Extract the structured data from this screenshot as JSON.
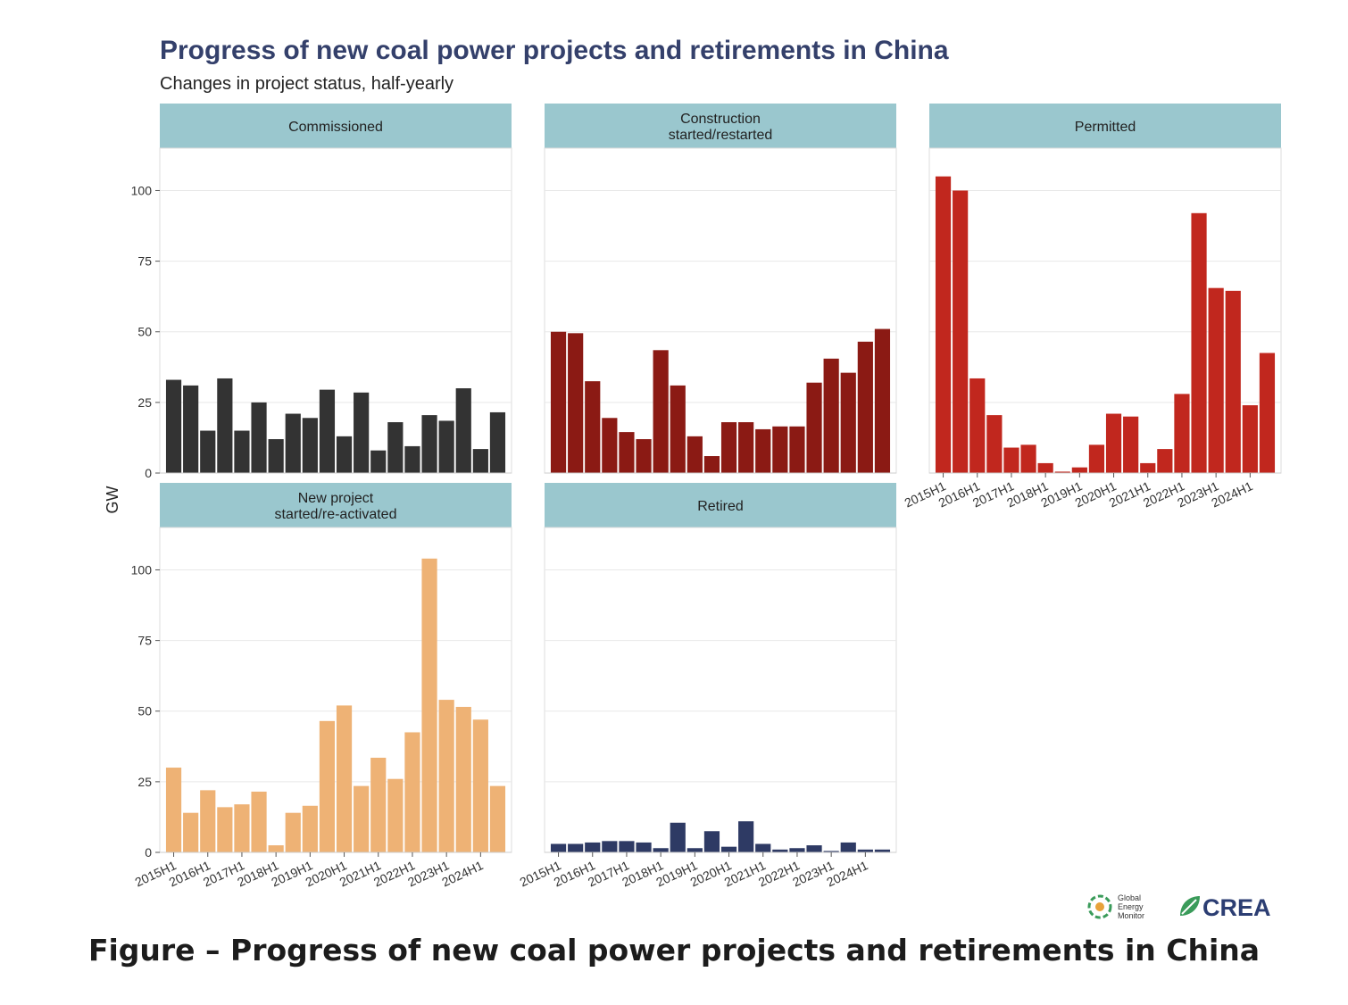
{
  "title": "Progress of new coal power projects and retirements in China",
  "subtitle": "Changes in project status, half-yearly",
  "caption": "Figure – Progress of new coal power projects and retirements in China",
  "logos": {
    "gem_lines": [
      "Global",
      "Energy",
      "Monitor"
    ],
    "crea": "CREA"
  },
  "chart_data": {
    "type": "bar",
    "title": "Progress of new coal power projects and retirements in China",
    "subtitle": "Changes in project status, half-yearly",
    "ylabel": "GW",
    "ylim": [
      0,
      115
    ],
    "yticks": [
      0,
      25,
      50,
      75,
      100
    ],
    "grid": true,
    "categories": [
      "2015H1",
      "2015H2",
      "2016H1",
      "2016H2",
      "2017H1",
      "2017H2",
      "2018H1",
      "2018H2",
      "2019H1",
      "2019H2",
      "2020H1",
      "2020H2",
      "2021H1",
      "2021H2",
      "2022H1",
      "2022H2",
      "2023H1",
      "2023H2",
      "2024H1",
      "2024H2"
    ],
    "tick_labels": [
      "2015H1",
      "2016H1",
      "2017H1",
      "2018H1",
      "2019H1",
      "2020H1",
      "2021H1",
      "2022H1",
      "2023H1",
      "2024H1"
    ],
    "panels": [
      {
        "name": "Commissioned",
        "label_lines": [
          "Commissioned"
        ],
        "color": "#333333",
        "values": [
          33,
          31,
          15,
          33.5,
          15,
          25,
          12,
          21,
          19.5,
          29.5,
          13,
          28.5,
          8,
          18,
          9.5,
          20.5,
          18.5,
          30,
          8.5,
          21.5
        ]
      },
      {
        "name": "Construction started/restarted",
        "label_lines": [
          "Construction",
          "started/restarted"
        ],
        "color": "#8b1a14",
        "values": [
          50,
          49.5,
          32.5,
          19.5,
          14.5,
          12,
          43.5,
          31,
          13,
          6,
          18,
          18,
          15.5,
          16.5,
          16.5,
          32,
          40.5,
          35.5,
          46.5,
          51
        ]
      },
      {
        "name": "Permitted",
        "label_lines": [
          "Permitted"
        ],
        "color": "#c1271e",
        "values": [
          105,
          100,
          33.5,
          20.5,
          9,
          10,
          3.5,
          0.5,
          2,
          10,
          21,
          20,
          3.5,
          8.5,
          28,
          92,
          65.5,
          64.5,
          24,
          42.5
        ]
      },
      {
        "name": "New project started/re-activated",
        "label_lines": [
          "New project",
          "started/re-activated"
        ],
        "color": "#eeb275",
        "values": [
          30,
          14,
          22,
          16,
          17,
          21.5,
          2.5,
          14,
          16.5,
          46.5,
          52,
          23.5,
          33.5,
          26,
          42.5,
          104,
          54,
          51.5,
          47,
          23.5
        ]
      },
      {
        "name": "Retired",
        "label_lines": [
          "Retired"
        ],
        "color": "#2e3a64",
        "values": [
          3,
          3,
          3.5,
          4,
          4,
          3.5,
          1.5,
          10.5,
          1.5,
          7.5,
          2,
          11,
          3,
          1,
          1.5,
          2.5,
          0.5,
          3.5,
          1,
          1
        ]
      }
    ]
  }
}
